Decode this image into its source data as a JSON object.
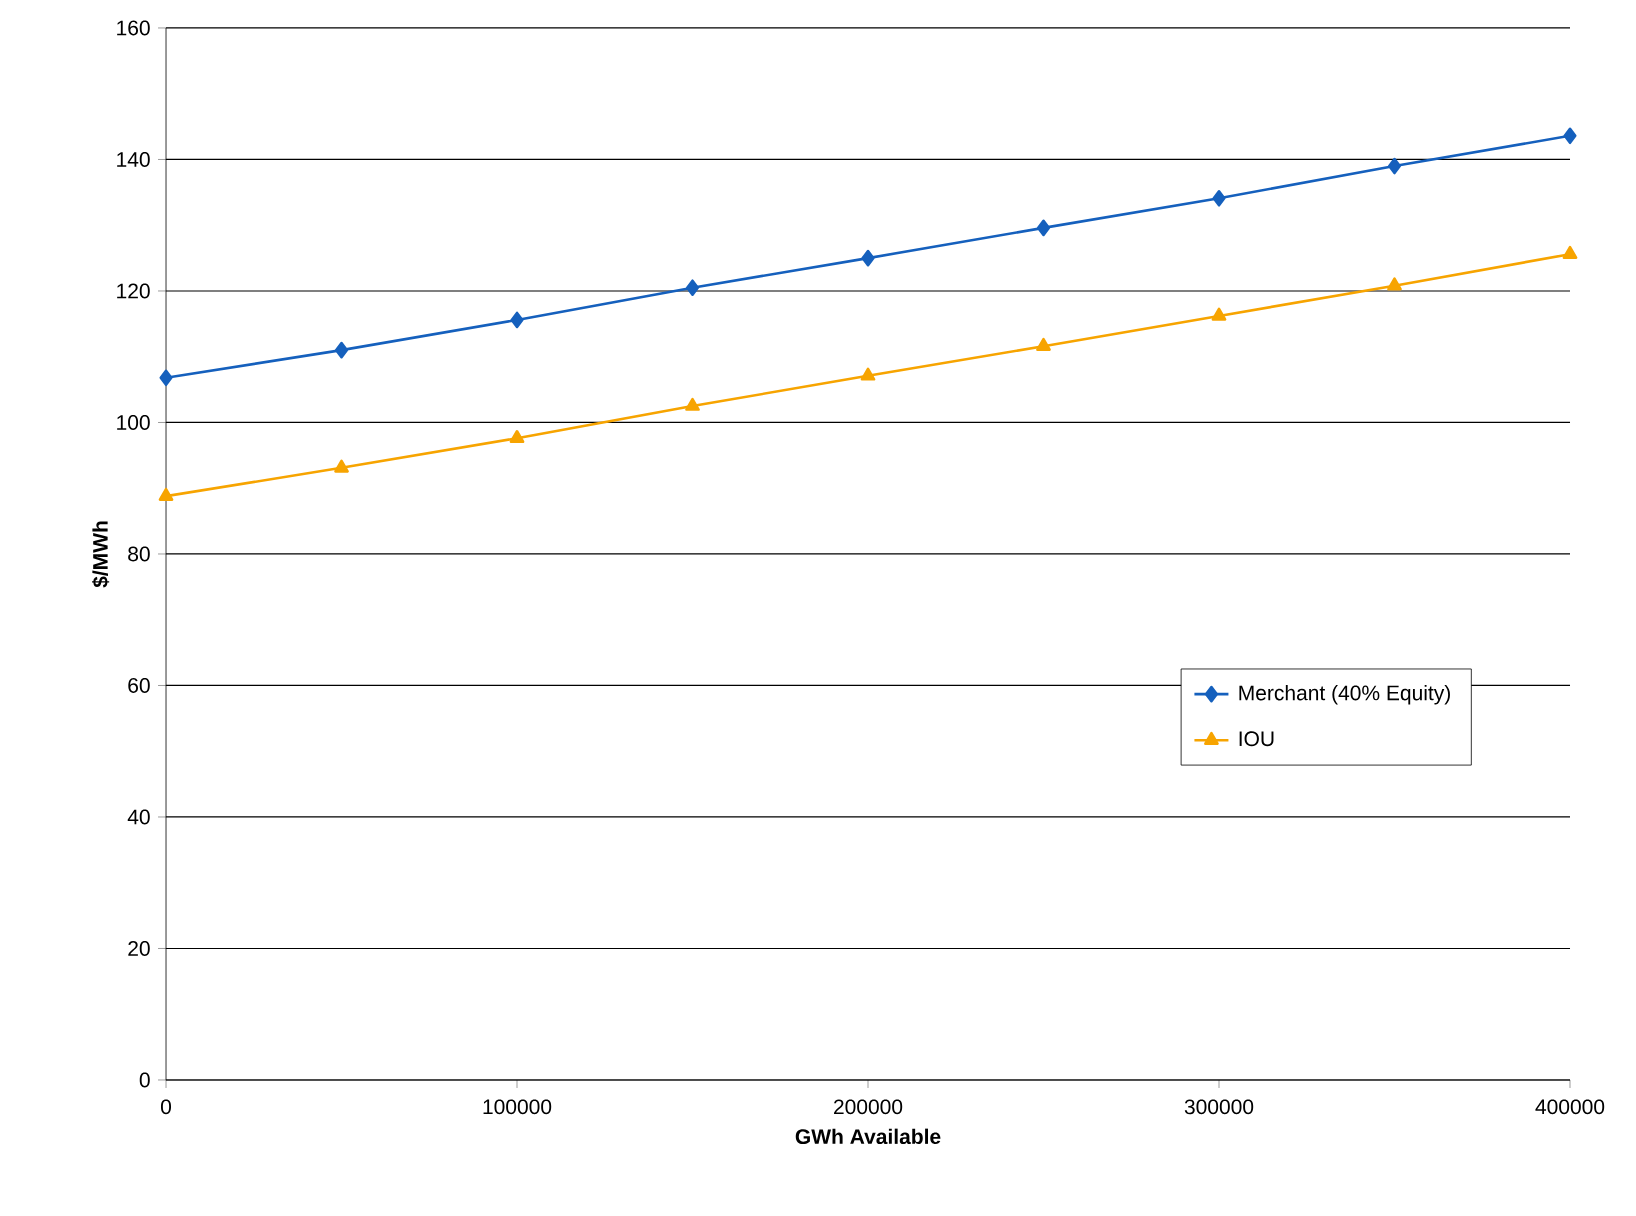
{
  "chart_data": {
    "type": "line",
    "xlabel": "GWh Available",
    "ylabel": "$/MWh",
    "x": [
      0,
      50000,
      100000,
      150000,
      200000,
      250000,
      300000,
      350000,
      400000
    ],
    "series": [
      {
        "name": "Merchant (40% Equity)",
        "color": "#1560bd",
        "marker": "diamond",
        "values": [
          106.8,
          111.0,
          115.6,
          120.5,
          125.0,
          129.6,
          134.1,
          139.0,
          143.6
        ]
      },
      {
        "name": "IOU",
        "color": "#f7a400",
        "marker": "triangle",
        "values": [
          88.8,
          93.1,
          97.6,
          102.5,
          107.1,
          111.6,
          116.2,
          120.8,
          125.6
        ]
      }
    ],
    "xlim": [
      0,
      400000
    ],
    "xticks": [
      0,
      100000,
      200000,
      300000,
      400000
    ],
    "ylim": [
      0,
      160
    ],
    "yticks": [
      0,
      20,
      40,
      60,
      80,
      100,
      120,
      140,
      160
    ],
    "grid": "y",
    "legend": "right",
    "line_style": "solid"
  }
}
